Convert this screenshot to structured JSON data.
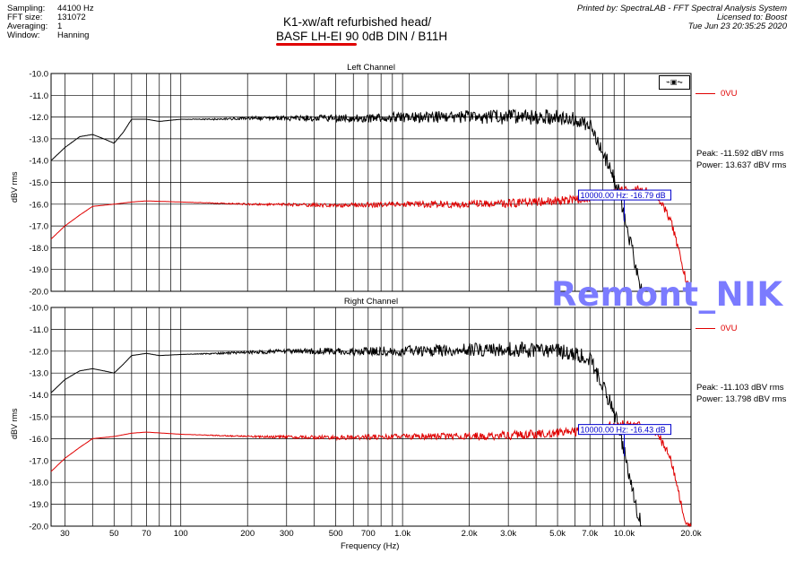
{
  "header": {
    "left": [
      {
        "key": "Sampling:",
        "value": "44100 Hz"
      },
      {
        "key": "FFT size:",
        "value": "131072"
      },
      {
        "key": "Averaging:",
        "value": "1"
      },
      {
        "key": "Window:",
        "value": "Hanning"
      }
    ],
    "right": [
      "Printed by: SpectraLAB - FFT Spectral Analysis System",
      "Licensed to: Boost",
      "Tue Jun 23 20:35:25 2020"
    ],
    "title_line1": "K1-xw/aft refurbished head/",
    "title_line2_underlined": "BASF LH-EI 90",
    "title_line2_rest": " 0dB DIN /  B11H"
  },
  "watermark": "Remont_NIK",
  "x_label": "Frequency (Hz)",
  "legend_label": "0VU",
  "colors": {
    "trace_a": "#000000",
    "trace_b": "#e00000",
    "marker": "#0000cc",
    "watermark": "#7b7bff"
  },
  "chart_data": [
    {
      "type": "line",
      "title": "Left Channel",
      "ylabel": "dBV rms",
      "xlabel": "",
      "xscale": "log",
      "xlim": [
        26,
        20000
      ],
      "ylim": [
        -20.0,
        -10.0
      ],
      "x_ticks": [
        30,
        50,
        70,
        100,
        200,
        300,
        500,
        700,
        1000,
        2000,
        3000,
        5000,
        7000,
        10000,
        20000
      ],
      "x_tick_labels": [
        "30",
        "50",
        "70",
        "100",
        "200",
        "300",
        "500",
        "700",
        "1.0k",
        "2.0k",
        "3.0k",
        "5.0k",
        "7.0k",
        "10.0k",
        "20.0k"
      ],
      "y_ticks": [
        -10,
        -11,
        -12,
        -13,
        -14,
        -15,
        -16,
        -17,
        -18,
        -19,
        -20
      ],
      "y_tick_labels": [
        "-10.0",
        "-11.0",
        "-12.0",
        "-13.0",
        "-14.0",
        "-15.0",
        "-16.0",
        "-17.0",
        "-18.0",
        "-19.0",
        "-20.0"
      ],
      "series": [
        {
          "color": "#000000",
          "x": [
            26,
            30,
            35,
            40,
            45,
            50,
            55,
            60,
            70,
            80,
            100,
            150,
            200,
            300,
            500,
            700,
            1000,
            2000,
            3000,
            5000,
            6000,
            7000,
            7500,
            8000,
            8500,
            9000,
            9500,
            10000,
            10500,
            11000,
            11500,
            12000
          ],
          "y": [
            -14.0,
            -13.4,
            -12.9,
            -12.8,
            -13.0,
            -13.2,
            -12.7,
            -12.1,
            -12.1,
            -12.2,
            -12.1,
            -12.1,
            -12.05,
            -12.05,
            -12.05,
            -12.05,
            -12.0,
            -12.0,
            -12.0,
            -12.0,
            -12.1,
            -12.4,
            -13.0,
            -13.6,
            -14.2,
            -14.8,
            -15.6,
            -16.6,
            -17.5,
            -18.4,
            -19.3,
            -20.0
          ]
        },
        {
          "color": "#e00000",
          "x": [
            26,
            30,
            35,
            40,
            50,
            60,
            70,
            100,
            200,
            500,
            1000,
            2000,
            3000,
            4000,
            5000,
            6000,
            7000,
            8000,
            9000,
            10000,
            12000,
            14000,
            16000,
            17000,
            18000,
            19000,
            20000
          ],
          "y": [
            -17.6,
            -17.0,
            -16.5,
            -16.1,
            -16.0,
            -15.9,
            -15.85,
            -15.9,
            -16.0,
            -16.05,
            -16.0,
            -16.0,
            -15.95,
            -15.9,
            -15.85,
            -15.8,
            -15.7,
            -15.6,
            -15.45,
            -15.3,
            -15.35,
            -15.6,
            -16.6,
            -17.5,
            -18.6,
            -19.5,
            -20.0
          ]
        }
      ],
      "marker": {
        "x": 10000,
        "text": "10000.00 Hz: -16.79 dB"
      },
      "peak": "Peak: -11.592 dBV rms",
      "power": "Power: 13.637 dBV rms"
    },
    {
      "type": "line",
      "title": "Right Channel",
      "ylabel": "dBV rms",
      "xlabel": "Frequency (Hz)",
      "xscale": "log",
      "xlim": [
        26,
        20000
      ],
      "ylim": [
        -20.0,
        -10.0
      ],
      "x_ticks": [
        30,
        50,
        70,
        100,
        200,
        300,
        500,
        700,
        1000,
        2000,
        3000,
        5000,
        7000,
        10000,
        20000
      ],
      "x_tick_labels": [
        "30",
        "50",
        "70",
        "100",
        "200",
        "300",
        "500",
        "700",
        "1.0k",
        "2.0k",
        "3.0k",
        "5.0k",
        "7.0k",
        "10.0k",
        "20.0k"
      ],
      "y_ticks": [
        -10,
        -11,
        -12,
        -13,
        -14,
        -15,
        -16,
        -17,
        -18,
        -19,
        -20
      ],
      "y_tick_labels": [
        "-10.0",
        "-11.0",
        "-12.0",
        "-13.0",
        "-14.0",
        "-15.0",
        "-16.0",
        "-17.0",
        "-18.0",
        "-19.0",
        "-20.0"
      ],
      "series": [
        {
          "color": "#000000",
          "x": [
            26,
            30,
            35,
            40,
            45,
            50,
            55,
            60,
            70,
            80,
            100,
            150,
            200,
            300,
            500,
            700,
            1000,
            2000,
            3000,
            5000,
            6000,
            7000,
            7500,
            8000,
            8500,
            9000,
            9500,
            10000,
            10500,
            11000,
            11500,
            12000
          ],
          "y": [
            -13.9,
            -13.3,
            -12.9,
            -12.8,
            -12.9,
            -13.0,
            -12.6,
            -12.2,
            -12.1,
            -12.2,
            -12.15,
            -12.1,
            -12.05,
            -12.0,
            -12.0,
            -12.0,
            -12.0,
            -11.95,
            -11.9,
            -12.0,
            -12.1,
            -12.4,
            -13.0,
            -13.6,
            -14.2,
            -14.8,
            -15.6,
            -16.6,
            -17.6,
            -18.6,
            -19.4,
            -20.0
          ]
        },
        {
          "color": "#e00000",
          "x": [
            26,
            30,
            35,
            40,
            50,
            60,
            70,
            100,
            200,
            500,
            1000,
            2000,
            3000,
            4000,
            5000,
            6000,
            7000,
            8000,
            9000,
            10000,
            12000,
            14000,
            16000,
            17000,
            18000,
            19000,
            20000
          ],
          "y": [
            -17.5,
            -16.9,
            -16.4,
            -16.0,
            -15.9,
            -15.75,
            -15.7,
            -15.8,
            -15.9,
            -15.95,
            -15.9,
            -15.9,
            -15.85,
            -15.8,
            -15.75,
            -15.7,
            -15.6,
            -15.5,
            -15.4,
            -15.3,
            -15.4,
            -15.7,
            -16.8,
            -17.8,
            -18.9,
            -19.8,
            -20.0
          ]
        }
      ],
      "marker": {
        "x": 10000,
        "text": "10000.00 Hz: -16.43 dB"
      },
      "peak": "Peak: -11.103 dBV rms",
      "power": "Power: 13.798 dBV rms"
    }
  ]
}
